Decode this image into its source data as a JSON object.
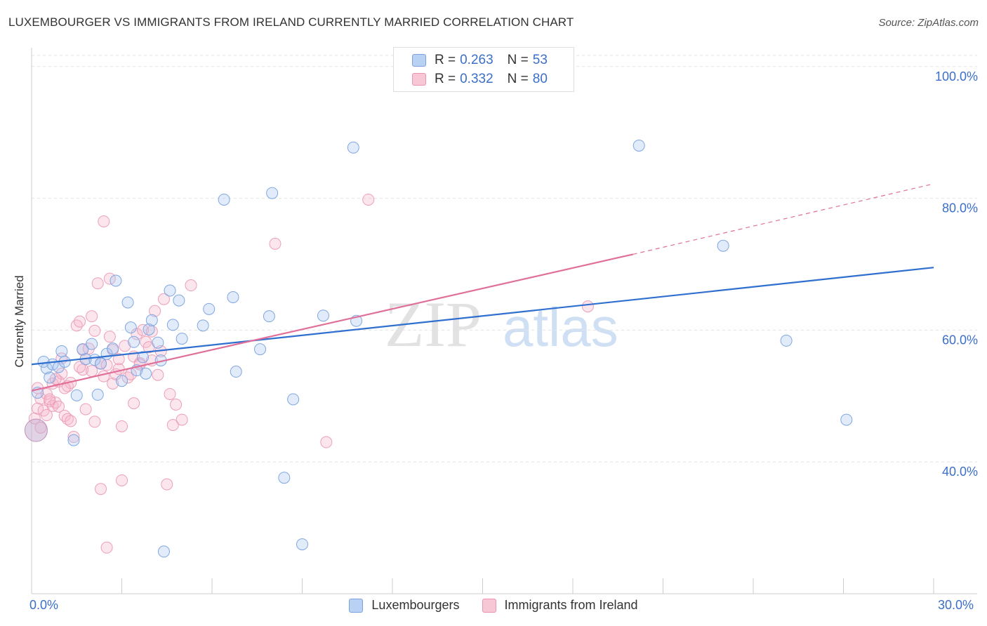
{
  "title": "LUXEMBOURGER VS IMMIGRANTS FROM IRELAND CURRENTLY MARRIED CORRELATION CHART",
  "source": "Source: ZipAtlas.com",
  "watermark": {
    "zip": "ZIP",
    "atlas": "atlas"
  },
  "colors": {
    "blue": "#a9c6f0",
    "blue_line": "#2f6fd0",
    "pink": "#f5b8cb",
    "pink_line": "#e0709a",
    "axis_text": "#3b6fca"
  },
  "stats": [
    {
      "r_label": "R =",
      "r": "0.263",
      "n_label": "N =",
      "n": "53"
    },
    {
      "r_label": "R =",
      "r": "0.332",
      "n_label": "N =",
      "n": "80"
    }
  ],
  "x_axis": {
    "min_label": "0.0%",
    "max_label": "30.0%"
  },
  "legend": [
    "Luxembourgers",
    "Immigrants from Ireland"
  ],
  "chart_data": {
    "type": "scatter",
    "title": "LUXEMBOURGER VS IMMIGRANTS FROM IRELAND CURRENTLY MARRIED CORRELATION CHART",
    "xlabel": "",
    "ylabel": "Currently Married",
    "xlim": [
      0,
      30
    ],
    "ylim": [
      20,
      102
    ],
    "y_ticks": [
      40,
      60,
      80,
      100
    ],
    "y_tick_labels": [
      "40.0%",
      "60.0%",
      "80.0%",
      "100.0%"
    ],
    "series": [
      {
        "name": "Luxembourgers",
        "r": 0.263,
        "n": 53,
        "trend": {
          "x0": 0,
          "y0": 54.8,
          "x1": 30,
          "y1": 69.5
        },
        "points": [
          [
            0.2,
            50.5
          ],
          [
            0.4,
            55.2
          ],
          [
            0.5,
            54.2
          ],
          [
            0.6,
            52.8
          ],
          [
            0.7,
            54.8
          ],
          [
            0.9,
            54.4
          ],
          [
            1.0,
            56.8
          ],
          [
            1.1,
            55.2
          ],
          [
            1.4,
            43.3
          ],
          [
            1.5,
            50.1
          ],
          [
            1.7,
            57.1
          ],
          [
            1.8,
            55.6
          ],
          [
            2.0,
            57.9
          ],
          [
            2.1,
            55.5
          ],
          [
            2.2,
            50.2
          ],
          [
            2.3,
            54.9
          ],
          [
            2.5,
            56.4
          ],
          [
            2.7,
            57.2
          ],
          [
            2.8,
            67.5
          ],
          [
            3.0,
            52.3
          ],
          [
            3.2,
            64.2
          ],
          [
            3.3,
            60.4
          ],
          [
            3.4,
            58.2
          ],
          [
            3.5,
            53.9
          ],
          [
            3.7,
            55.9
          ],
          [
            3.8,
            53.4
          ],
          [
            3.9,
            60.1
          ],
          [
            4.0,
            61.5
          ],
          [
            4.2,
            58.1
          ],
          [
            4.3,
            55.4
          ],
          [
            4.4,
            26.4
          ],
          [
            4.6,
            66.0
          ],
          [
            4.7,
            60.8
          ],
          [
            4.9,
            64.5
          ],
          [
            5.0,
            58.7
          ],
          [
            5.7,
            60.7
          ],
          [
            5.9,
            63.2
          ],
          [
            6.4,
            79.8
          ],
          [
            6.7,
            65.0
          ],
          [
            6.8,
            53.7
          ],
          [
            7.6,
            57.1
          ],
          [
            7.9,
            62.1
          ],
          [
            8.0,
            80.8
          ],
          [
            8.4,
            37.6
          ],
          [
            8.7,
            49.5
          ],
          [
            9.0,
            27.5
          ],
          [
            9.7,
            62.2
          ],
          [
            10.7,
            87.7
          ],
          [
            10.8,
            61.4
          ],
          [
            20.2,
            88.0
          ],
          [
            23.0,
            72.8
          ],
          [
            25.1,
            58.4
          ],
          [
            27.1,
            46.4
          ]
        ]
      },
      {
        "name": "Immigrants from Ireland",
        "r": 0.332,
        "n": 80,
        "trend": {
          "x0": 0,
          "y0": 50.8,
          "x1": 20.0,
          "y1": 71.5,
          "dash_to": {
            "x": 30,
            "y": 82.2
          }
        },
        "points": [
          [
            0.1,
            46.6
          ],
          [
            0.2,
            48.1
          ],
          [
            0.2,
            51.2
          ],
          [
            0.3,
            49.6
          ],
          [
            0.4,
            47.8
          ],
          [
            0.5,
            50.3
          ],
          [
            0.6,
            49.2
          ],
          [
            0.7,
            51.9
          ],
          [
            0.7,
            48.5
          ],
          [
            0.8,
            49.0
          ],
          [
            0.9,
            52.2
          ],
          [
            0.9,
            48.4
          ],
          [
            1.0,
            55.7
          ],
          [
            1.0,
            53.4
          ],
          [
            1.1,
            47.0
          ],
          [
            1.2,
            51.5
          ],
          [
            1.2,
            46.5
          ],
          [
            1.3,
            46.2
          ],
          [
            1.4,
            43.8
          ],
          [
            1.5,
            60.7
          ],
          [
            1.6,
            61.3
          ],
          [
            1.7,
            57.0
          ],
          [
            1.7,
            54.0
          ],
          [
            1.8,
            48.0
          ],
          [
            1.8,
            55.6
          ],
          [
            1.9,
            57.2
          ],
          [
            2.0,
            62.1
          ],
          [
            2.0,
            53.8
          ],
          [
            2.1,
            46.1
          ],
          [
            2.1,
            59.9
          ],
          [
            2.2,
            67.1
          ],
          [
            2.3,
            55.0
          ],
          [
            2.3,
            35.9
          ],
          [
            2.4,
            53.0
          ],
          [
            2.5,
            54.7
          ],
          [
            2.5,
            27.0
          ],
          [
            2.6,
            67.8
          ],
          [
            2.6,
            59.0
          ],
          [
            2.7,
            51.9
          ],
          [
            2.7,
            57.0
          ],
          [
            2.8,
            53.3
          ],
          [
            2.9,
            54.1
          ],
          [
            3.0,
            45.4
          ],
          [
            3.0,
            37.2
          ],
          [
            3.1,
            57.6
          ],
          [
            3.2,
            52.8
          ],
          [
            3.3,
            53.3
          ],
          [
            3.4,
            48.9
          ],
          [
            3.4,
            56.0
          ],
          [
            3.5,
            59.4
          ],
          [
            3.6,
            55.0
          ],
          [
            3.7,
            60.0
          ],
          [
            3.8,
            58.2
          ],
          [
            3.9,
            57.4
          ],
          [
            4.0,
            59.8
          ],
          [
            4.0,
            55.4
          ],
          [
            4.1,
            62.9
          ],
          [
            4.2,
            53.2
          ],
          [
            4.3,
            56.8
          ],
          [
            4.5,
            36.6
          ],
          [
            4.6,
            50.3
          ],
          [
            4.7,
            45.6
          ],
          [
            4.8,
            48.7
          ],
          [
            5.0,
            46.4
          ],
          [
            5.3,
            66.8
          ],
          [
            8.1,
            73.1
          ],
          [
            9.8,
            43.0
          ],
          [
            11.2,
            79.8
          ],
          [
            18.5,
            63.6
          ],
          [
            0.3,
            45.2
          ],
          [
            0.5,
            47.1
          ],
          [
            1.6,
            54.4
          ],
          [
            2.4,
            76.5
          ],
          [
            0.8,
            52.6
          ],
          [
            1.3,
            52.0
          ],
          [
            3.6,
            54.8
          ],
          [
            4.4,
            64.7
          ],
          [
            2.9,
            55.6
          ],
          [
            1.1,
            51.2
          ],
          [
            0.6,
            49.5
          ]
        ]
      }
    ]
  }
}
